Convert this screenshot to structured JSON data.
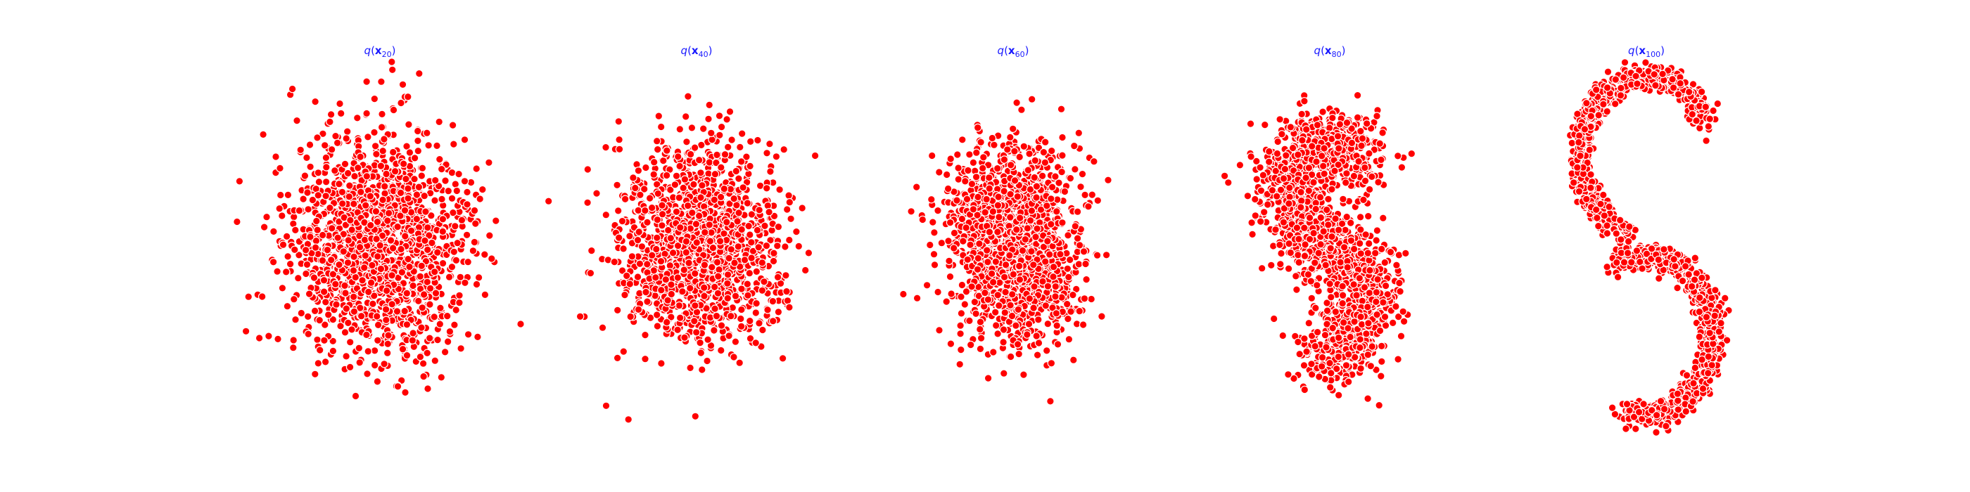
{
  "chart_data": [
    {
      "type": "scatter",
      "title": {
        "func": "q",
        "var": "x",
        "sub": "20"
      },
      "xlabel": "",
      "ylabel": "",
      "axes": "off",
      "grid": false,
      "marker_color": "#ff0000",
      "marker_edge": "#ffffff",
      "n_points": 1600,
      "center": [
        0,
        0
      ],
      "spread": [
        0.85,
        1.0
      ],
      "blend_to_s": 0.0
    },
    {
      "type": "scatter",
      "title": {
        "func": "q",
        "var": "x",
        "sub": "40"
      },
      "xlabel": "",
      "ylabel": "",
      "axes": "off",
      "grid": false,
      "marker_color": "#ff0000",
      "marker_edge": "#ffffff",
      "n_points": 1600,
      "center": [
        0,
        0
      ],
      "spread": [
        0.82,
        0.95
      ],
      "blend_to_s": 0.12
    },
    {
      "type": "scatter",
      "title": {
        "func": "q",
        "var": "x",
        "sub": "60"
      },
      "xlabel": "",
      "ylabel": "",
      "axes": "off",
      "grid": false,
      "marker_color": "#ff0000",
      "marker_edge": "#ffffff",
      "n_points": 1600,
      "center": [
        0,
        0
      ],
      "spread": [
        0.78,
        0.9
      ],
      "blend_to_s": 0.3
    },
    {
      "type": "scatter",
      "title": {
        "func": "q",
        "var": "x",
        "sub": "80"
      },
      "xlabel": "",
      "ylabel": "",
      "axes": "off",
      "grid": false,
      "marker_color": "#ff0000",
      "marker_edge": "#ffffff",
      "n_points": 1600,
      "center": [
        0,
        0
      ],
      "spread": [
        0.8,
        0.92
      ],
      "blend_to_s": 0.6
    },
    {
      "type": "scatter",
      "title": {
        "func": "q",
        "var": "x",
        "sub": "100"
      },
      "xlabel": "",
      "ylabel": "",
      "axes": "off",
      "grid": false,
      "marker_color": "#ff0000",
      "marker_edge": "#ffffff",
      "n_points": 1600,
      "center": [
        0,
        0
      ],
      "spread": [
        0.8,
        0.92
      ],
      "blend_to_s": 1.0
    }
  ]
}
